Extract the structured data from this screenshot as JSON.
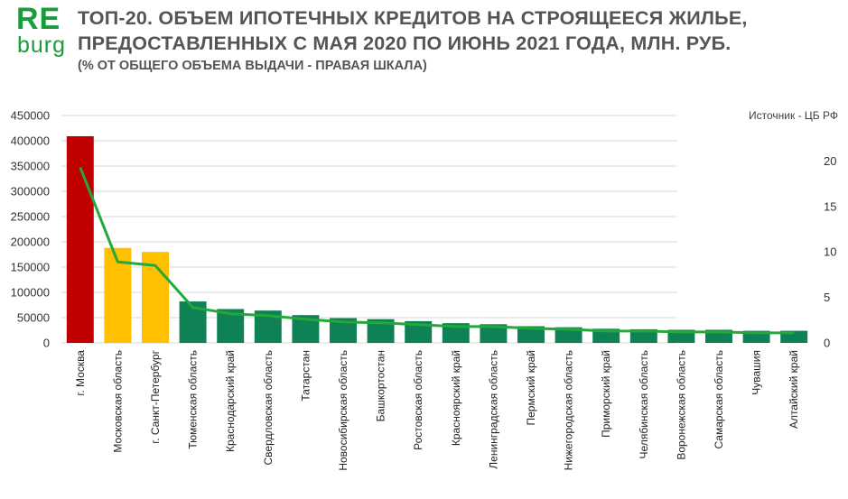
{
  "logo": {
    "line1": "RE",
    "line2": "burg"
  },
  "header": {
    "title_line1": "ТОП-20. ОБЪЕМ ИПОТЕЧНЫХ КРЕДИТОВ НА СТРОЯЩЕЕСЯ ЖИЛЬЕ,",
    "title_line2": "ПРЕДОСТАВЛЕННЫХ С МАЯ 2020 ПО ИЮНЬ 2021 ГОДА, МЛН. РУБ.",
    "subtitle": "(% ОТ ОБЩЕГО ОБЪЕМА ВЫДАЧИ - ПРАВАЯ ШКАЛА)",
    "source": "Источник - ЦБ РФ"
  },
  "colors": {
    "moscow": "#c00000",
    "top3": "#ffc000",
    "rest": "#0e8254",
    "line": "#23a83a",
    "grid": "#d9d9d9"
  },
  "chart_data": {
    "type": "bar",
    "title": "ТОП-20. ОБЪЕМ ИПОТЕЧНЫХ КРЕДИТОВ НА СТРОЯЩЕЕСЯ ЖИЛЬЕ, ПРЕДОСТАВЛЕННЫХ С МАЯ 2020 ПО ИЮНЬ 2021 ГОДА, МЛН. РУБ.",
    "subtitle": "(% ОТ ОБЩЕГО ОБЪЕМА ВЫДАЧИ - ПРАВАЯ ШКАЛА)",
    "categories": [
      "г. Москва",
      "Московская область",
      "г. Санкт-Петербург",
      "Тюменская область",
      "Краснодарский край",
      "Свердловская область",
      "Татарстан",
      "Новосибирская область",
      "Башкортостан",
      "Ростовская область",
      "Красноярский край",
      "Ленинградская область",
      "Пермский край",
      "Нижегородская область",
      "Приморский край",
      "Челябинская область",
      "Воронежская область",
      "Самарская область",
      "Чувашия",
      "Алтайский край"
    ],
    "series": [
      {
        "name": "Объем ипотечных кредитов, млн. руб.",
        "type": "bar",
        "axis": "left",
        "values": [
          409000,
          188000,
          180000,
          82000,
          67000,
          64000,
          55000,
          49000,
          47000,
          43000,
          39000,
          37000,
          33000,
          31000,
          28000,
          27000,
          26000,
          26000,
          24000,
          24000
        ]
      },
      {
        "name": "% от общего объема выдачи",
        "type": "line",
        "axis": "right",
        "values": [
          19.3,
          8.9,
          8.5,
          3.9,
          3.2,
          3.0,
          2.6,
          2.3,
          2.2,
          2.0,
          1.8,
          1.8,
          1.6,
          1.5,
          1.3,
          1.3,
          1.2,
          1.2,
          1.1,
          1.1
        ]
      }
    ],
    "y_left": {
      "min": 0,
      "max": 450000,
      "ticks": [
        "0",
        "50000",
        "100000",
        "150000",
        "200000",
        "250000",
        "300000",
        "350000",
        "400000",
        "450000"
      ]
    },
    "y_right": {
      "min": 0,
      "max": 25,
      "ticks": [
        "0",
        "5",
        "10",
        "15",
        "20"
      ]
    },
    "grid": true,
    "legend": "none"
  }
}
